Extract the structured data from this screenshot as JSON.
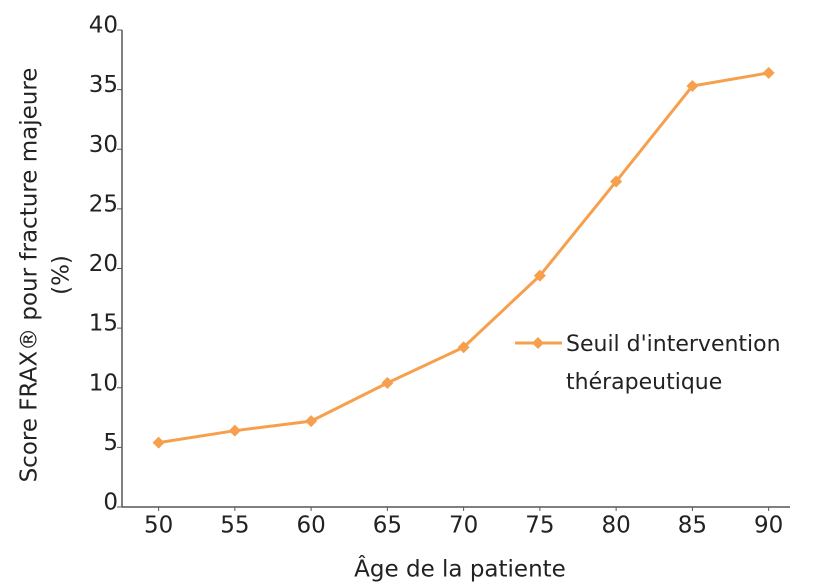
{
  "chart_data": {
    "type": "line",
    "xlabel": "Âge de la patiente",
    "ylabel": [
      "Score FRAX® pour fracture majeure",
      "(%)"
    ],
    "x": [
      50,
      55,
      60,
      65,
      70,
      75,
      80,
      85,
      90
    ],
    "series": [
      {
        "name": "Seuil d'intervention thérapeutique",
        "color": "#f6a04d",
        "values": [
          5.4,
          6.4,
          7.2,
          10.4,
          13.4,
          19.4,
          27.3,
          35.3,
          36.4
        ]
      }
    ],
    "xlim": [
      47.6,
      91.4
    ],
    "xticks": [
      50,
      55,
      60,
      65,
      70,
      75,
      80,
      85,
      90
    ],
    "ylim": [
      0,
      40
    ],
    "yticks": [
      0,
      5,
      10,
      15,
      20,
      25,
      30,
      35,
      40
    ],
    "legend": "right"
  }
}
